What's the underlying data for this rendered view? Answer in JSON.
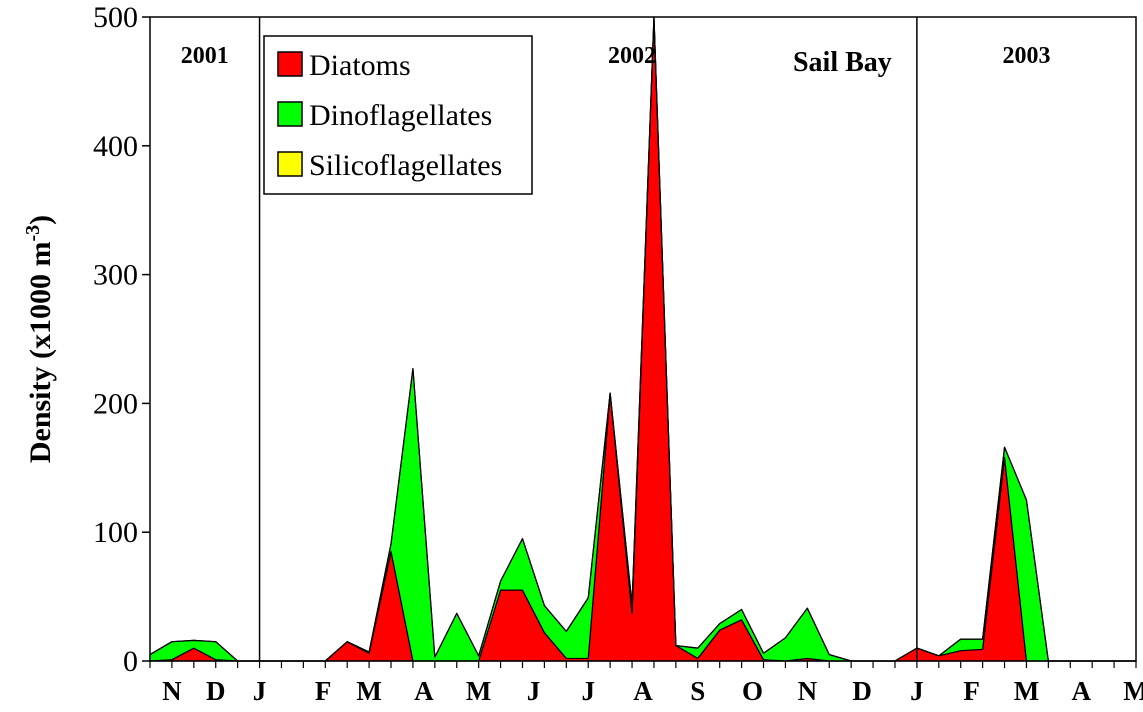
{
  "chart_data": {
    "type": "area",
    "site_label": "Sail Bay",
    "ylabel_main": "Density (x1000 m",
    "ylabel_exp": "-3",
    "ylabel_close": ")",
    "xlabel": "",
    "ylim": [
      0,
      500
    ],
    "yticks": [
      0,
      100,
      200,
      300,
      400,
      500
    ],
    "ytick_labels": [
      "0",
      "100",
      "200",
      "300",
      "400",
      "500"
    ],
    "month_labels": [
      {
        "label": "N",
        "x": 1
      },
      {
        "label": "D",
        "x": 3
      },
      {
        "label": "J",
        "x": 5
      },
      {
        "label": "F",
        "x": 7.9
      },
      {
        "label": "M",
        "x": 10
      },
      {
        "label": "A",
        "x": 12.5
      },
      {
        "label": "M",
        "x": 15
      },
      {
        "label": "J",
        "x": 17.5
      },
      {
        "label": "J",
        "x": 20
      },
      {
        "label": "A",
        "x": 22.5
      },
      {
        "label": "S",
        "x": 25
      },
      {
        "label": "O",
        "x": 27.5
      },
      {
        "label": "N",
        "x": 30
      },
      {
        "label": "D",
        "x": 32.5
      },
      {
        "label": "J",
        "x": 35
      },
      {
        "label": "F",
        "x": 37.5
      },
      {
        "label": "M",
        "x": 40
      },
      {
        "label": "A",
        "x": 42.5
      },
      {
        "label": "M",
        "x": 45
      }
    ],
    "year_dividers": [
      5,
      35
    ],
    "year_labels": [
      {
        "label": "2001",
        "x": 2.5
      },
      {
        "label": "2002",
        "x": 22
      },
      {
        "label": "2003",
        "x": 40
      }
    ],
    "legend": {
      "placement": "top-left",
      "entries": [
        {
          "name": "Diatoms",
          "color": "#ff0000"
        },
        {
          "name": "Dinoflagellates",
          "color": "#00ff00"
        },
        {
          "name": "Silicoflagellates",
          "color": "#ffff00"
        }
      ]
    },
    "x": [
      0,
      1,
      2,
      3,
      4,
      5,
      6,
      7,
      8,
      9,
      10,
      11,
      12,
      13,
      14,
      15,
      16,
      17,
      18,
      19,
      20,
      21,
      22,
      23,
      24,
      25,
      26,
      27,
      28,
      29,
      30,
      31,
      32,
      33,
      34,
      35,
      36,
      37,
      38,
      39,
      40,
      41,
      42,
      43,
      44,
      45
    ],
    "series": [
      {
        "name": "Diatoms",
        "color": "#ff0000",
        "values": [
          0,
          1,
          10,
          1,
          0,
          0,
          0,
          0,
          0,
          15,
          6,
          85,
          0,
          0,
          0,
          0,
          55,
          55,
          22,
          2,
          2,
          208,
          37,
          500,
          12,
          2,
          24,
          32,
          1,
          0,
          2,
          0,
          0,
          0,
          0,
          10,
          4,
          8,
          9,
          158,
          0,
          0,
          0,
          0,
          0,
          0
        ]
      },
      {
        "name": "Dinoflagellates",
        "color": "#00ff00",
        "values": [
          5,
          14,
          6,
          14,
          0,
          0,
          0,
          0,
          0,
          0,
          1,
          6,
          227,
          3,
          37,
          4,
          7,
          40,
          21,
          21,
          47,
          0,
          7,
          0,
          0,
          8,
          5,
          8,
          5,
          18,
          39,
          5,
          0,
          0,
          0,
          0,
          0,
          9,
          8,
          8,
          125,
          0,
          0,
          0,
          0,
          0
        ]
      },
      {
        "name": "Silicoflagellates",
        "color": "#ffff00",
        "values": [
          0,
          0,
          0,
          0,
          0,
          0,
          0,
          0,
          0,
          0,
          0,
          0,
          0,
          0,
          0,
          0,
          0,
          0,
          0,
          0,
          0,
          0,
          0,
          0,
          0,
          0,
          0,
          0,
          0,
          0,
          0,
          0,
          0,
          0,
          0,
          0,
          0,
          0,
          0,
          0,
          0,
          0,
          0,
          0,
          0,
          0
        ]
      }
    ]
  }
}
